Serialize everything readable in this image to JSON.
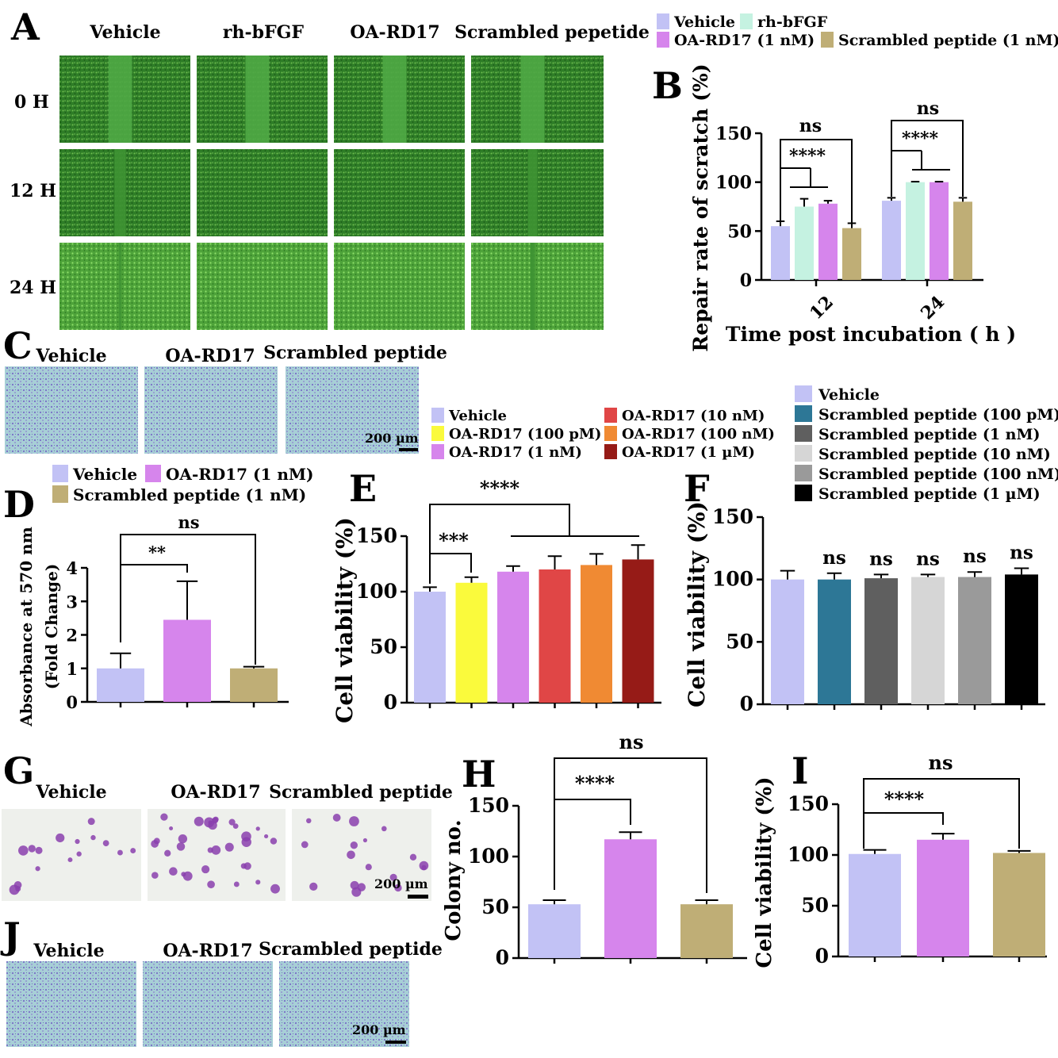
{
  "colors": {
    "vehicle": "#c2c2f5",
    "bfgf": "#c5f2e1",
    "oa1": "#d685ec",
    "scr1": "#bfae76",
    "oa100p": "#fafa3c",
    "oa10n": "#e04646",
    "oa100n": "#f08a33",
    "oa1u": "#961b17",
    "s100p": "#2d7796",
    "s1n": "#5f5f5f",
    "s10n": "#d6d6d6",
    "s100n": "#9a9a9a",
    "s1u": "#000000",
    "micro_green": "#2e7d27",
    "micro_light": "#a8d8b8",
    "colony_bg": "#eef0ec",
    "colony_dot": "#8a3fae"
  },
  "panels": {
    "A": {
      "letter": "A",
      "cols": [
        "Vehicle",
        "rh-bFGF",
        "OA-RD17",
        "Scrambled pepetide"
      ],
      "rows": [
        "0 H",
        "12 H",
        "24 H"
      ]
    },
    "C": {
      "letter": "C",
      "cols": [
        "Vehicle",
        "OA-RD17",
        "Scrambled peptide"
      ],
      "scale": "200 µm"
    },
    "G": {
      "letter": "G",
      "cols": [
        "Vehicle",
        "OA-RD17",
        "Scrambled peptide"
      ],
      "scale": "200 µm"
    },
    "J": {
      "letter": "J",
      "cols": [
        "Vehicle",
        "OA-RD17",
        "Scrambled peptide"
      ],
      "scale": "200 µm"
    }
  },
  "chart_data": [
    {
      "id": "B",
      "letter": "B",
      "type": "bar",
      "ylabel": "Repair rate of scratch (%)",
      "xlabel": "Time post incubation ( h )",
      "categories": [
        "12",
        "24"
      ],
      "ylim": [
        0,
        150
      ],
      "yticks": [
        0,
        50,
        100,
        150
      ],
      "legend": [
        "Vehicle",
        "rh-bFGF",
        "OA-RD17 (1 nM)",
        "Scrambled peptide (1 nM)"
      ],
      "series": [
        {
          "name": "Vehicle",
          "color_key": "vehicle",
          "values": [
            55,
            81
          ],
          "errors": [
            5,
            3
          ]
        },
        {
          "name": "rh-bFGF",
          "color_key": "bfgf",
          "values": [
            75,
            100
          ],
          "errors": [
            8,
            0.5
          ]
        },
        {
          "name": "OA-RD17 (1 nM)",
          "color_key": "oa1",
          "values": [
            78,
            100
          ],
          "errors": [
            3,
            0.5
          ]
        },
        {
          "name": "Scrambled peptide (1 nM)",
          "color_key": "scr1",
          "values": [
            53,
            80
          ],
          "errors": [
            5,
            4
          ]
        }
      ],
      "annotations": [
        "ns",
        "****",
        "ns",
        "****"
      ]
    },
    {
      "id": "D",
      "letter": "D",
      "type": "bar",
      "ylabel_lines": [
        "Absorbance at 570 nm",
        "(Fold Change)"
      ],
      "ylim": [
        0,
        4
      ],
      "yticks": [
        0,
        1,
        2,
        3,
        4
      ],
      "legend": [
        "Vehicle",
        "OA-RD17 (1 nM)",
        "Scrambled peptide (1 nM)"
      ],
      "bars": [
        {
          "name": "Vehicle",
          "color_key": "vehicle",
          "value": 1.0,
          "error": 0.45
        },
        {
          "name": "OA-RD17 (1 nM)",
          "color_key": "oa1",
          "value": 2.45,
          "error": 1.15
        },
        {
          "name": "Scrambled peptide (1 nM)",
          "color_key": "scr1",
          "value": 1.0,
          "error": 0.05
        }
      ],
      "annotations": [
        "ns",
        "**"
      ]
    },
    {
      "id": "E",
      "letter": "E",
      "type": "bar",
      "ylabel": "Cell viability (%)",
      "ylim": [
        0,
        150
      ],
      "yticks": [
        0,
        50,
        100,
        150
      ],
      "legend": [
        "Vehicle",
        "OA-RD17 (100 pM)",
        "OA-RD17 (1 nM)",
        "OA-RD17 (10 nM)",
        "OA-RD17 (100 nM)",
        "OA-RD17 (1 µM)"
      ],
      "bars": [
        {
          "name": "Vehicle",
          "color_key": "vehicle",
          "value": 100,
          "error": 4
        },
        {
          "name": "OA-RD17 (100 pM)",
          "color_key": "oa100p",
          "value": 108,
          "error": 5
        },
        {
          "name": "OA-RD17 (1 nM)",
          "color_key": "oa1",
          "value": 118,
          "error": 5
        },
        {
          "name": "OA-RD17 (10 nM)",
          "color_key": "oa10n",
          "value": 120,
          "error": 12
        },
        {
          "name": "OA-RD17 (100 nM)",
          "color_key": "oa100n",
          "value": 124,
          "error": 10
        },
        {
          "name": "OA-RD17 (1 µM)",
          "color_key": "oa1u",
          "value": 129,
          "error": 13
        }
      ],
      "annotations": [
        "****",
        "***"
      ]
    },
    {
      "id": "F",
      "letter": "F",
      "type": "bar",
      "ylabel": "Cell viability (%)",
      "ylim": [
        0,
        150
      ],
      "yticks": [
        0,
        50,
        100,
        150
      ],
      "legend": [
        "Vehicle",
        "Scrambled peptide (100 pM)",
        "Scrambled peptide (1 nM)",
        "Scrambled peptide (10 nM)",
        "Scrambled peptide (100 nM)",
        "Scrambled peptide (1 µM)"
      ],
      "bars": [
        {
          "name": "Vehicle",
          "color_key": "vehicle",
          "value": 100,
          "error": 7
        },
        {
          "name": "Scrambled peptide (100 pM)",
          "color_key": "s100p",
          "value": 100,
          "error": 5
        },
        {
          "name": "Scrambled peptide (1 nM)",
          "color_key": "s1n",
          "value": 101,
          "error": 3
        },
        {
          "name": "Scrambled peptide (10 nM)",
          "color_key": "s10n",
          "value": 102,
          "error": 2
        },
        {
          "name": "Scrambled peptide (100 nM)",
          "color_key": "s100n",
          "value": 102,
          "error": 4
        },
        {
          "name": "Scrambled peptide (1 µM)",
          "color_key": "s1u",
          "value": 104,
          "error": 5
        }
      ],
      "annotations": [
        "ns",
        "ns",
        "ns",
        "ns",
        "ns"
      ]
    },
    {
      "id": "H",
      "letter": "H",
      "type": "bar",
      "ylabel": "Colony no.",
      "ylim": [
        0,
        150
      ],
      "yticks": [
        0,
        50,
        100,
        150
      ],
      "bars": [
        {
          "color_key": "vehicle",
          "value": 53,
          "error": 4
        },
        {
          "color_key": "oa1",
          "value": 117,
          "error": 7
        },
        {
          "color_key": "scr1",
          "value": 53,
          "error": 4
        }
      ],
      "annotations": [
        "ns",
        "****"
      ]
    },
    {
      "id": "I",
      "letter": "I",
      "type": "bar",
      "ylabel": "Cell viability (%)",
      "ylim": [
        0,
        150
      ],
      "yticks": [
        0,
        50,
        100,
        150
      ],
      "bars": [
        {
          "color_key": "vehicle",
          "value": 101,
          "error": 4
        },
        {
          "color_key": "oa1",
          "value": 115,
          "error": 6
        },
        {
          "color_key": "scr1",
          "value": 102,
          "error": 2
        }
      ],
      "annotations": [
        "ns",
        "****"
      ]
    }
  ]
}
